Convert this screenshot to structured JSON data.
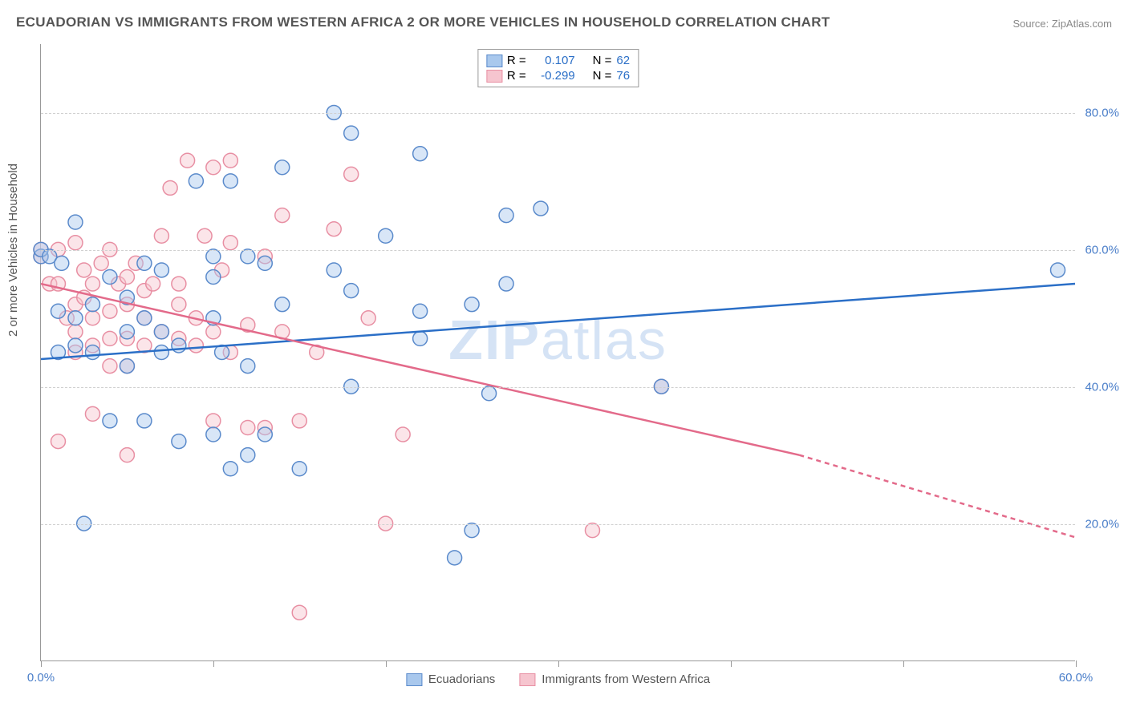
{
  "title": "ECUADORIAN VS IMMIGRANTS FROM WESTERN AFRICA 2 OR MORE VEHICLES IN HOUSEHOLD CORRELATION CHART",
  "source": "Source: ZipAtlas.com",
  "ylabel": "2 or more Vehicles in Household",
  "watermark_a": "ZIP",
  "watermark_b": "atlas",
  "chart": {
    "type": "scatter",
    "xlim": [
      0,
      60
    ],
    "ylim": [
      0,
      90
    ],
    "xtick_positions": [
      0,
      10,
      20,
      30,
      40,
      50,
      60
    ],
    "xtick_labels": [
      "0.0%",
      "",
      "",
      "",
      "",
      "",
      "60.0%"
    ],
    "ytick_positions": [
      20,
      40,
      60,
      80
    ],
    "ytick_labels": [
      "20.0%",
      "40.0%",
      "60.0%",
      "80.0%"
    ],
    "grid_color": "#d0d0d0",
    "background_color": "#ffffff",
    "marker_radius": 9,
    "marker_opacity": 0.45,
    "series": [
      {
        "name": "Ecuadorians",
        "color_fill": "#a9c8ed",
        "color_stroke": "#5a8acb",
        "trend_color": "#2b6fc7",
        "r": "0.107",
        "n": "62",
        "trend": {
          "x1": 0,
          "y1": 44,
          "x2": 60,
          "y2": 55
        },
        "points": [
          [
            0,
            59
          ],
          [
            0,
            60
          ],
          [
            0.5,
            59
          ],
          [
            1,
            51
          ],
          [
            1,
            45
          ],
          [
            1.2,
            58
          ],
          [
            2,
            64
          ],
          [
            2,
            50
          ],
          [
            2,
            46
          ],
          [
            2.5,
            20
          ],
          [
            3,
            52
          ],
          [
            3,
            45
          ],
          [
            4,
            56
          ],
          [
            4,
            35
          ],
          [
            5,
            53
          ],
          [
            5,
            43
          ],
          [
            5,
            48
          ],
          [
            6,
            50
          ],
          [
            6,
            35
          ],
          [
            6,
            58
          ],
          [
            7,
            57
          ],
          [
            7,
            45
          ],
          [
            7,
            48
          ],
          [
            8,
            46
          ],
          [
            8,
            32
          ],
          [
            9,
            70
          ],
          [
            10,
            50
          ],
          [
            10,
            56
          ],
          [
            10,
            33
          ],
          [
            10,
            59
          ],
          [
            10.5,
            45
          ],
          [
            11,
            28
          ],
          [
            11,
            70
          ],
          [
            12,
            43
          ],
          [
            12,
            30
          ],
          [
            12,
            59
          ],
          [
            13,
            58
          ],
          [
            13,
            33
          ],
          [
            14,
            72
          ],
          [
            14,
            52
          ],
          [
            15,
            28
          ],
          [
            17,
            80
          ],
          [
            17,
            57
          ],
          [
            18,
            77
          ],
          [
            18,
            54
          ],
          [
            18,
            40
          ],
          [
            20,
            62
          ],
          [
            22,
            74
          ],
          [
            22,
            51
          ],
          [
            22,
            47
          ],
          [
            24,
            15
          ],
          [
            25,
            52
          ],
          [
            25,
            19
          ],
          [
            26,
            39
          ],
          [
            27,
            55
          ],
          [
            27,
            65
          ],
          [
            29,
            66
          ],
          [
            36,
            40
          ],
          [
            59,
            57
          ]
        ]
      },
      {
        "name": "Immigrants from Western Africa",
        "color_fill": "#f6c5cf",
        "color_stroke": "#e88fa3",
        "trend_color": "#e36a8a",
        "r": "-0.299",
        "n": "76",
        "trend": {
          "x1": 0,
          "y1": 55,
          "x2": 44,
          "y2": 30
        },
        "trend_dash": {
          "x1": 44,
          "y1": 30,
          "x2": 60,
          "y2": 18
        },
        "points": [
          [
            0,
            59
          ],
          [
            0,
            60
          ],
          [
            0.5,
            55
          ],
          [
            1,
            55
          ],
          [
            1,
            60
          ],
          [
            1,
            32
          ],
          [
            1.5,
            50
          ],
          [
            2,
            61
          ],
          [
            2,
            52
          ],
          [
            2,
            48
          ],
          [
            2,
            45
          ],
          [
            2.5,
            57
          ],
          [
            2.5,
            53
          ],
          [
            3,
            55
          ],
          [
            3,
            50
          ],
          [
            3,
            46
          ],
          [
            3,
            36
          ],
          [
            3.5,
            58
          ],
          [
            4,
            51
          ],
          [
            4,
            47
          ],
          [
            4,
            43
          ],
          [
            4,
            60
          ],
          [
            4.5,
            55
          ],
          [
            5,
            56
          ],
          [
            5,
            52
          ],
          [
            5,
            47
          ],
          [
            5,
            43
          ],
          [
            5,
            30
          ],
          [
            5.5,
            58
          ],
          [
            6,
            54
          ],
          [
            6,
            50
          ],
          [
            6,
            46
          ],
          [
            6.5,
            55
          ],
          [
            7,
            62
          ],
          [
            7,
            48
          ],
          [
            7.5,
            69
          ],
          [
            8,
            47
          ],
          [
            8,
            55
          ],
          [
            8,
            52
          ],
          [
            8.5,
            73
          ],
          [
            9,
            46
          ],
          [
            9,
            50
          ],
          [
            9.5,
            62
          ],
          [
            10,
            48
          ],
          [
            10,
            72
          ],
          [
            10,
            35
          ],
          [
            10.5,
            57
          ],
          [
            11,
            61
          ],
          [
            11,
            45
          ],
          [
            11,
            73
          ],
          [
            12,
            49
          ],
          [
            12,
            34
          ],
          [
            13,
            59
          ],
          [
            13,
            34
          ],
          [
            14,
            48
          ],
          [
            14,
            65
          ],
          [
            15,
            7
          ],
          [
            15,
            35
          ],
          [
            16,
            45
          ],
          [
            17,
            63
          ],
          [
            18,
            71
          ],
          [
            19,
            50
          ],
          [
            20,
            20
          ],
          [
            21,
            33
          ],
          [
            32,
            19
          ],
          [
            36,
            40
          ]
        ]
      }
    ]
  },
  "legend_top": {
    "r_label": "R  =",
    "n_label": "N  ="
  },
  "legend_bottom": [
    "Ecuadorians",
    "Immigrants from Western Africa"
  ],
  "colors": {
    "title": "#555555",
    "axis_text": "#4a7ec9",
    "label_text": "#555555"
  }
}
